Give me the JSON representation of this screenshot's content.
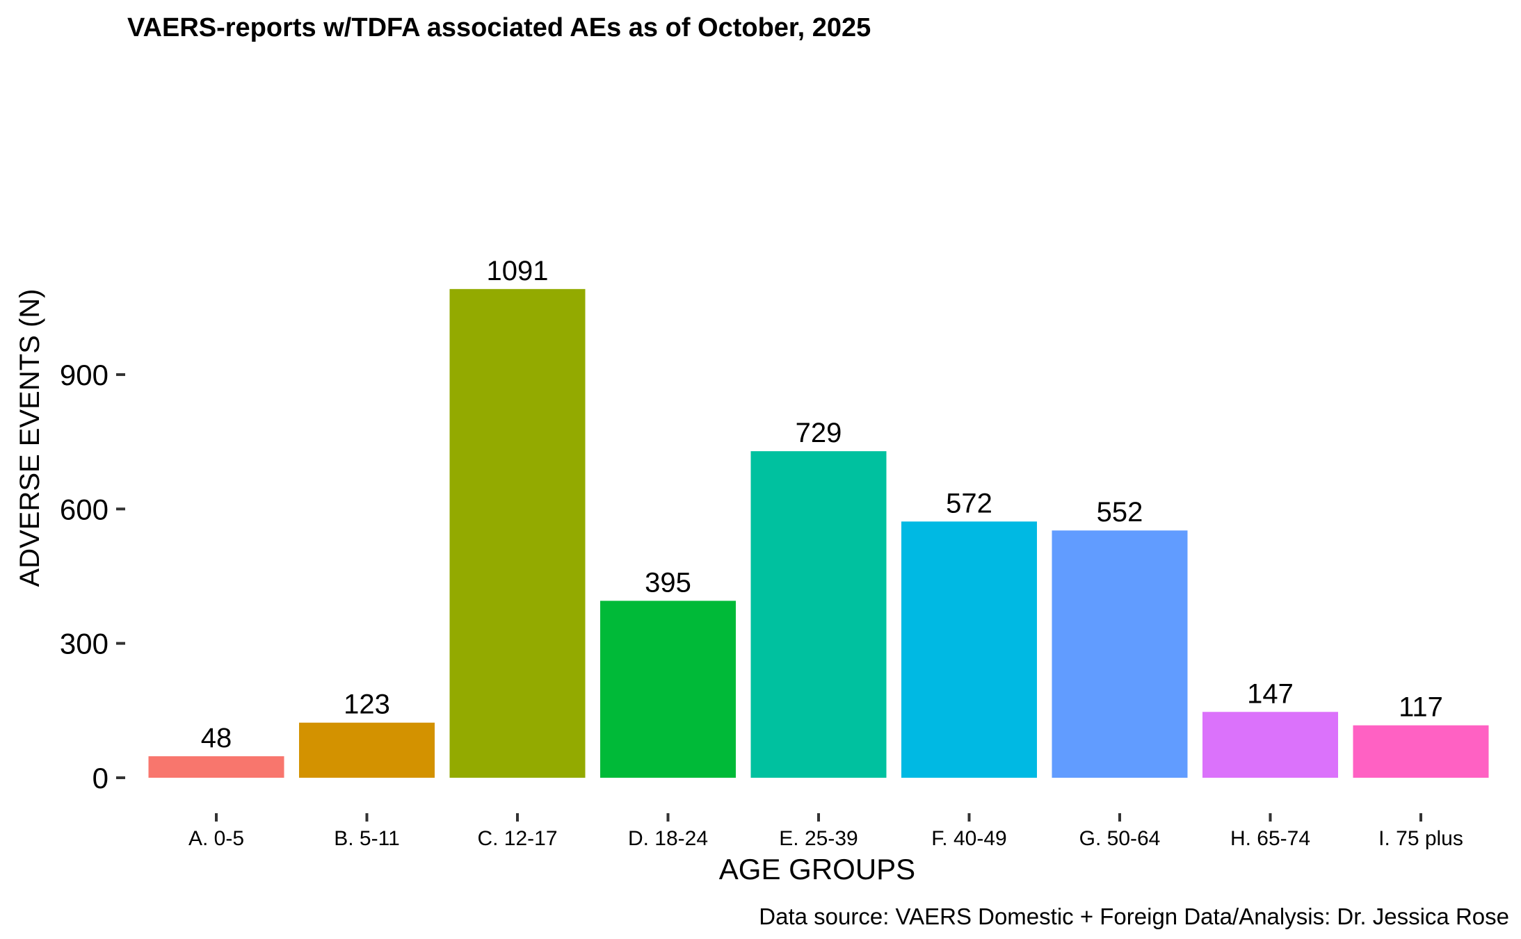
{
  "chart_data": {
    "type": "bar",
    "title": "VAERS-reports w/TDFA associated AEs as of October, 2025",
    "xlabel": "AGE GROUPS",
    "ylabel": "ADVERSE EVENTS (N)",
    "caption": "Data source: VAERS Domestic + Foreign Data/Analysis: Dr. Jessica Rose",
    "categories": [
      "A. 0-5",
      "B. 5-11",
      "C. 12-17",
      "D. 18-24",
      "E. 25-39",
      "F. 40-49",
      "G. 50-64",
      "H. 65-74",
      "I. 75 plus"
    ],
    "values": [
      48,
      123,
      1091,
      395,
      729,
      572,
      552,
      147,
      117
    ],
    "colors": [
      "#F8766D",
      "#D39200",
      "#93AA00",
      "#00BA38",
      "#00C19F",
      "#00B9E3",
      "#619CFF",
      "#DB72FB",
      "#FF61C3"
    ],
    "yticks": [
      0,
      300,
      600,
      900
    ],
    "ylim": [
      0,
      1091
    ],
    "grid": false,
    "legend": "none"
  }
}
